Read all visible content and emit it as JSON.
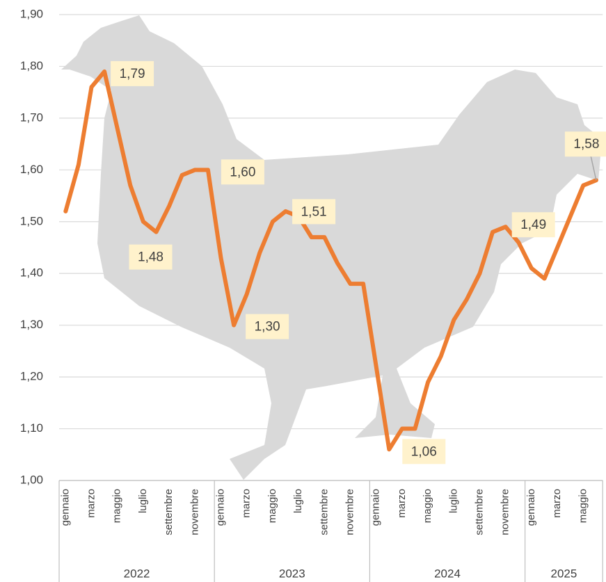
{
  "chart_data": {
    "type": "line",
    "categories": [
      "gennaio",
      null,
      "marzo",
      null,
      "maggio",
      null,
      "luglio",
      null,
      "settembre",
      null,
      "novembre",
      null,
      "gennaio",
      null,
      "marzo",
      null,
      "maggio",
      null,
      "luglio",
      null,
      "settembre",
      null,
      "novembre",
      null,
      "gennaio",
      null,
      "marzo",
      null,
      "maggio",
      null,
      "luglio",
      null,
      "settembre",
      null,
      "novembre",
      null,
      "gennaio",
      null,
      "marzo",
      null,
      "maggio",
      null
    ],
    "years": [
      "2022",
      "2023",
      "2024",
      "2025"
    ],
    "series": [
      {
        "color": "#ed7d31",
        "values": [
          1.52,
          1.61,
          1.76,
          1.79,
          1.68,
          1.57,
          1.5,
          1.48,
          1.53,
          1.59,
          1.6,
          1.6,
          1.43,
          1.3,
          1.36,
          1.44,
          1.5,
          1.52,
          1.51,
          1.47,
          1.47,
          1.42,
          1.38,
          1.38,
          1.22,
          1.06,
          1.1,
          1.1,
          1.19,
          1.24,
          1.31,
          1.35,
          1.4,
          1.48,
          1.49,
          1.46,
          1.41,
          1.39,
          1.45,
          1.51,
          1.57,
          1.58
        ],
        "value_labels": [
          null,
          null,
          null,
          "1,79",
          null,
          null,
          null,
          "1,48",
          null,
          null,
          null,
          "1,60",
          null,
          "1,30",
          null,
          null,
          null,
          null,
          "1,51",
          null,
          null,
          null,
          null,
          null,
          null,
          "1,06",
          null,
          null,
          null,
          null,
          null,
          null,
          null,
          null,
          "1,49",
          null,
          null,
          null,
          null,
          null,
          null,
          "1,58"
        ]
      }
    ],
    "ylim": [
      1.0,
      1.9
    ],
    "yticks": [
      {
        "value": 1.0,
        "label": "1,00"
      },
      {
        "value": 1.1,
        "label": "1,10"
      },
      {
        "value": 1.2,
        "label": "1,20"
      },
      {
        "value": 1.3,
        "label": "1,30"
      },
      {
        "value": 1.4,
        "label": "1,40"
      },
      {
        "value": 1.5,
        "label": "1,50"
      },
      {
        "value": 1.6,
        "label": "1,60"
      },
      {
        "value": 1.7,
        "label": "1,70"
      },
      {
        "value": 1.8,
        "label": "1,80"
      },
      {
        "value": 1.9,
        "label": "1,90"
      }
    ],
    "grid": true
  }
}
